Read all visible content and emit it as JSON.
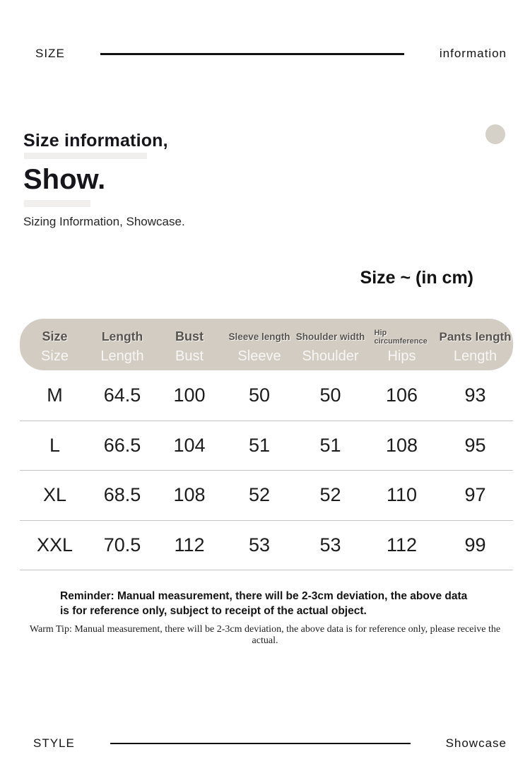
{
  "banner_top": {
    "left": "SIZE",
    "right": "information"
  },
  "intro": {
    "title_line1": "Size information,",
    "title_line2": "Show.",
    "subtitle": "Sizing Information, Showcase."
  },
  "size_table": {
    "unit_note": "Size ~ (in cm)",
    "type": "table",
    "columns": [
      {
        "label": "Size",
        "sublabel": "Size"
      },
      {
        "label": "Length",
        "sublabel": "Length"
      },
      {
        "label": "Bust",
        "sublabel": "Bust"
      },
      {
        "label": "Sleeve length",
        "sublabel": "Sleeve"
      },
      {
        "label": "Shoulder width",
        "sublabel": "Shoulder"
      },
      {
        "label": "Hip circumference",
        "sublabel": "Hips"
      },
      {
        "label": "Pants length",
        "sublabel": "Length"
      }
    ],
    "rows": [
      [
        "M",
        "64.5",
        "100",
        "50",
        "50",
        "106",
        "93"
      ],
      [
        "L",
        "66.5",
        "104",
        "51",
        "51",
        "108",
        "95"
      ],
      [
        "XL",
        "68.5",
        "108",
        "52",
        "52",
        "110",
        "97"
      ],
      [
        "XXL",
        "70.5",
        "112",
        "53",
        "53",
        "112",
        "99"
      ]
    ]
  },
  "notes": {
    "reminder": "Reminder: Manual measurement, there will be 2-3cm deviation, the above data is for reference only, subject to receipt of the actual object.",
    "warm_tip": "Warm Tip: Manual measurement, there will be 2-3cm deviation, the above data is for reference only, please receive the actual."
  },
  "banner_bottom": {
    "left": "STYLE",
    "right": "Showcase"
  },
  "colors": {
    "table_header_bg": "#d3ccc3",
    "decorative_dot": "#d6d1c8",
    "row_divider": "#c5c5c5",
    "text": "#161616"
  }
}
